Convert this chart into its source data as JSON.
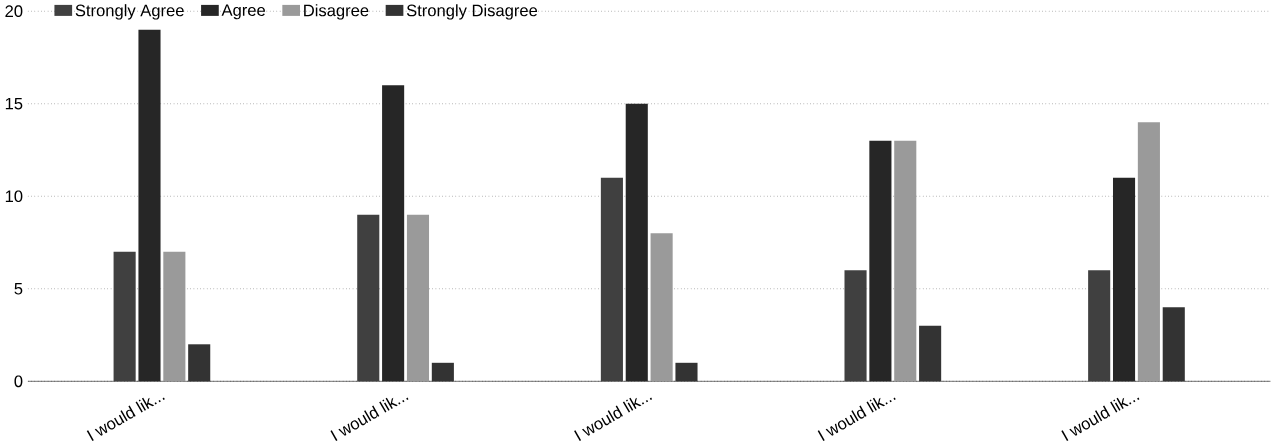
{
  "chart_data": {
    "type": "bar",
    "categories": [
      "I would lik...",
      "I would lik...",
      "I would lik...",
      "I would lik...",
      "I would lik..."
    ],
    "series": [
      {
        "name": "Strongly Agree",
        "color": "#404040",
        "values": [
          7,
          9,
          11,
          6,
          6
        ]
      },
      {
        "name": "Agree",
        "color": "#262626",
        "values": [
          19,
          16,
          15,
          13,
          11
        ]
      },
      {
        "name": "Disagree",
        "color": "#9a9a9a",
        "values": [
          7,
          9,
          8,
          13,
          14
        ]
      },
      {
        "name": "Strongly Disagree",
        "color": "#333333",
        "values": [
          2,
          1,
          1,
          3,
          4
        ]
      }
    ],
    "ylim": [
      0,
      20
    ],
    "yticks": [
      0,
      5,
      10,
      15,
      20
    ],
    "grid": "y",
    "legend": "top left"
  }
}
